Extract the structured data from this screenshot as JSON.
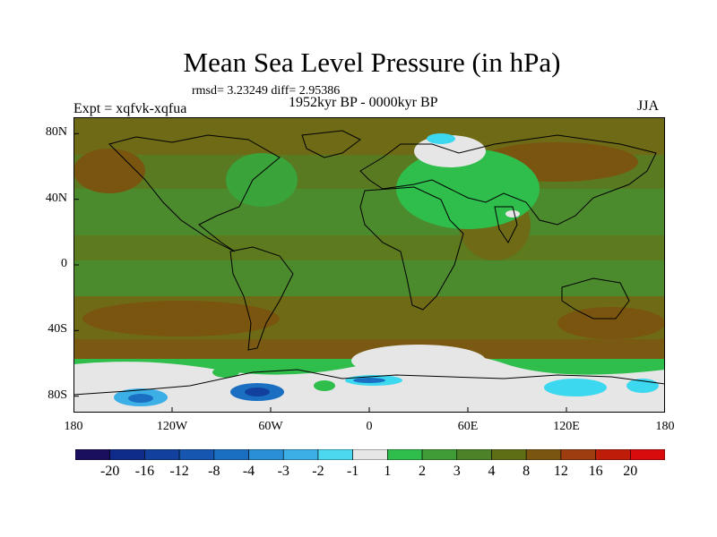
{
  "title": "Mean Sea Level Pressure (in hPa)",
  "stats": "rmsd= 3.23249 diff= 2.95386",
  "experiment": "Expt = xqfvk-xqfua",
  "period": "1952kyr BP - 0000kyr BP",
  "season": "JJA",
  "map": {
    "lat_labels": [
      "80N",
      "40N",
      "0",
      "40S",
      "80S"
    ],
    "lon_labels": [
      "180",
      "120W",
      "60W",
      "0",
      "60E",
      "120E",
      "180"
    ],
    "lat_values": [
      80,
      40,
      0,
      -40,
      -80
    ],
    "lon_values": [
      -180,
      -120,
      -60,
      0,
      60,
      120,
      180
    ],
    "lat_range": [
      -90,
      90
    ],
    "lon_range": [
      -180,
      180
    ]
  },
  "colorbar": {
    "labels": [
      "-20",
      "-16",
      "-12",
      "-8",
      "-4",
      "-3",
      "-2",
      "-1",
      "1",
      "2",
      "3",
      "4",
      "8",
      "12",
      "16",
      "20"
    ],
    "colors": [
      "#1a0f5e",
      "#102c8a",
      "#12409e",
      "#1656b0",
      "#1a6fc2",
      "#2a8fd6",
      "#3cb0e6",
      "#4cd8ef",
      "#e6e6e6",
      "#2fbe4c",
      "#3f9c36",
      "#4e8228",
      "#5e6e14",
      "#7a5510",
      "#9e3d10",
      "#bf1d0a",
      "#d80c0c"
    ]
  },
  "palette": {
    "ocean_green": "#4c8a2e",
    "light_green": "#2fbe4c",
    "olive": "#6e6a16",
    "brown": "#7a5510",
    "white": "#e6e6e6",
    "cyan": "#3cd8ef",
    "blue": "#1a6fc2"
  }
}
